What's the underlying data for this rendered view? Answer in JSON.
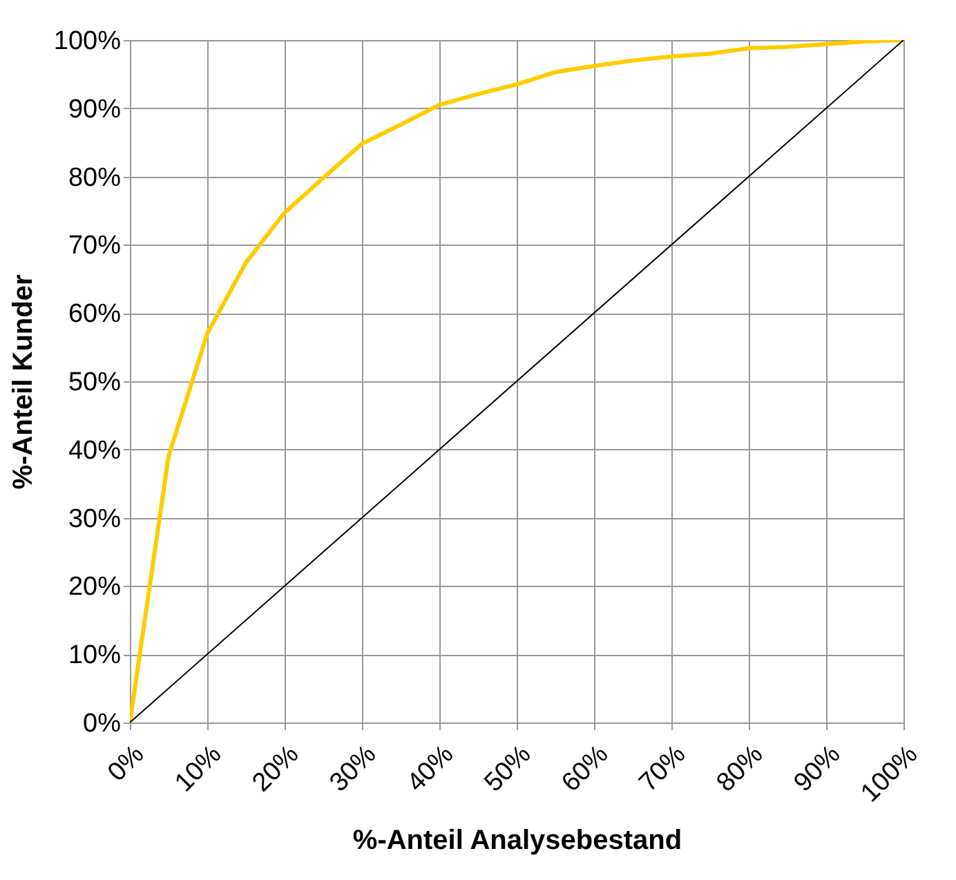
{
  "chart_data": {
    "type": "line",
    "xlabel": "%-Anteil Analysebestand",
    "ylabel": "%-Anteil Kunder",
    "xlim": [
      0,
      100
    ],
    "ylim": [
      0,
      100
    ],
    "xticks": [
      {
        "value": 0,
        "label": "0%"
      },
      {
        "value": 10,
        "label": "10%"
      },
      {
        "value": 20,
        "label": "20%"
      },
      {
        "value": 30,
        "label": "30%"
      },
      {
        "value": 40,
        "label": "40%"
      },
      {
        "value": 50,
        "label": "50%"
      },
      {
        "value": 60,
        "label": "60%"
      },
      {
        "value": 70,
        "label": "70%"
      },
      {
        "value": 80,
        "label": "80%"
      },
      {
        "value": 90,
        "label": "90%"
      },
      {
        "value": 100,
        "label": "100%"
      }
    ],
    "yticks": [
      {
        "value": 0,
        "label": "0%"
      },
      {
        "value": 10,
        "label": "10%"
      },
      {
        "value": 20,
        "label": "20%"
      },
      {
        "value": 30,
        "label": "30%"
      },
      {
        "value": 40,
        "label": "40%"
      },
      {
        "value": 50,
        "label": "50%"
      },
      {
        "value": 60,
        "label": "60%"
      },
      {
        "value": 70,
        "label": "70%"
      },
      {
        "value": 80,
        "label": "80%"
      },
      {
        "value": 90,
        "label": "90%"
      },
      {
        "value": 100,
        "label": "100%"
      }
    ],
    "grid": true,
    "series": [
      {
        "color": "#ffcc00",
        "x": [
          0,
          5,
          10,
          15,
          20,
          25,
          30,
          35,
          40,
          45,
          50,
          55,
          60,
          65,
          70,
          75,
          80,
          85,
          90,
          95,
          100
        ],
        "values": [
          0,
          39,
          57,
          67.4,
          74.7,
          79.8,
          84.8,
          87.6,
          90.5,
          92.1,
          93.5,
          95.3,
          96.2,
          97,
          97.6,
          98,
          98.8,
          99,
          99.4,
          99.8,
          100
        ]
      },
      {
        "color": "#000000",
        "x": [
          0,
          100
        ],
        "values": [
          0,
          100
        ]
      }
    ]
  }
}
